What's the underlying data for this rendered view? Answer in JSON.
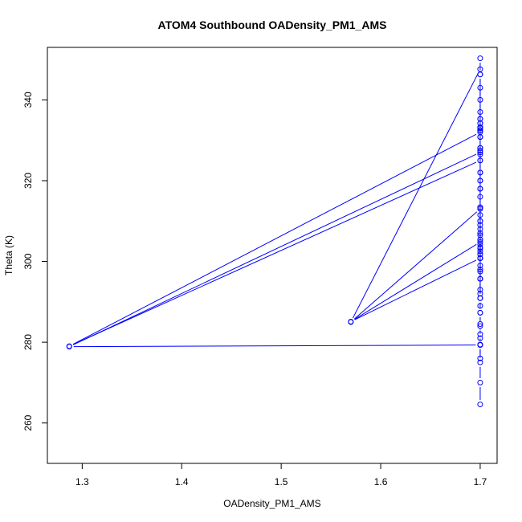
{
  "chart_data": {
    "type": "line",
    "title": "ATOM4 Southbound OADensity_PM1_AMS",
    "xlabel": "OADensity_PM1_AMS",
    "ylabel": "Theta (K)",
    "xlim": [
      1.265,
      1.717
    ],
    "ylim": [
      250,
      353
    ],
    "x_ticks": [
      1.3,
      1.4,
      1.5,
      1.6,
      1.7
    ],
    "x_tick_labels": [
      "1.3",
      "1.4",
      "1.5",
      "1.6",
      "1.7"
    ],
    "y_ticks": [
      260,
      280,
      300,
      320,
      340
    ],
    "y_tick_labels": [
      "260",
      "280",
      "300",
      "320",
      "340"
    ],
    "grid": false,
    "legend": "none",
    "series_color": "#0000ff",
    "markers": "open-circle",
    "x": [
      1.7,
      1.7,
      1.7,
      1.7,
      1.7,
      1.7,
      1.7,
      1.7,
      1.7,
      1.7,
      1.7,
      1.7,
      1.7,
      1.7,
      1.7,
      1.7,
      1.7,
      1.7,
      1.7,
      1.7,
      1.7,
      1.7,
      1.7,
      1.7,
      1.7,
      1.7,
      1.7,
      1.7,
      1.7,
      1.7,
      1.7,
      1.7,
      1.7,
      1.7,
      1.7,
      1.7,
      1.7,
      1.7,
      1.7,
      1.7,
      1.7,
      1.7,
      1.57,
      1.7,
      1.7,
      1.7,
      1.7,
      1.7,
      1.7,
      1.7,
      1.7,
      1.57,
      1.7,
      1.7,
      1.7,
      1.7,
      1.7,
      1.7,
      1.7,
      1.7,
      1.7,
      1.7,
      1.7,
      1.287,
      1.7,
      1.7,
      1.7,
      1.7,
      1.7,
      1.7,
      1.7,
      1.7,
      1.7,
      1.287,
      1.7,
      1.7,
      1.7,
      1.7,
      1.7,
      1.7,
      1.7,
      1.7,
      1.7,
      1.7,
      1.7
    ],
    "y": [
      264.6,
      270,
      275,
      279.4,
      282,
      284.5,
      287.3,
      289,
      290.9,
      293,
      295.7,
      297.5,
      299,
      300.8,
      301.8,
      302.5,
      303.2,
      304.2,
      305.4,
      306.5,
      308,
      310,
      311.5,
      313.4,
      316,
      318,
      320,
      322,
      325,
      326.5,
      327.5,
      328.1,
      330.8,
      332.5,
      333.2,
      334.2,
      335.3,
      337,
      340,
      343,
      346.3,
      347.6,
      285,
      313,
      309,
      307,
      305.4,
      303.5,
      301.8,
      300.8,
      304.8,
      285.1,
      300.8,
      298,
      295.7,
      292,
      290.9,
      287.3,
      284,
      281,
      279.4,
      276,
      279.3,
      278.9,
      327,
      328.1,
      330.8,
      332.5,
      333.2,
      334.2,
      335.3,
      333,
      332,
      279,
      325,
      322,
      320,
      318,
      313.4,
      310,
      300.8,
      295.7,
      290.9,
      346.3,
      350.3
    ]
  }
}
